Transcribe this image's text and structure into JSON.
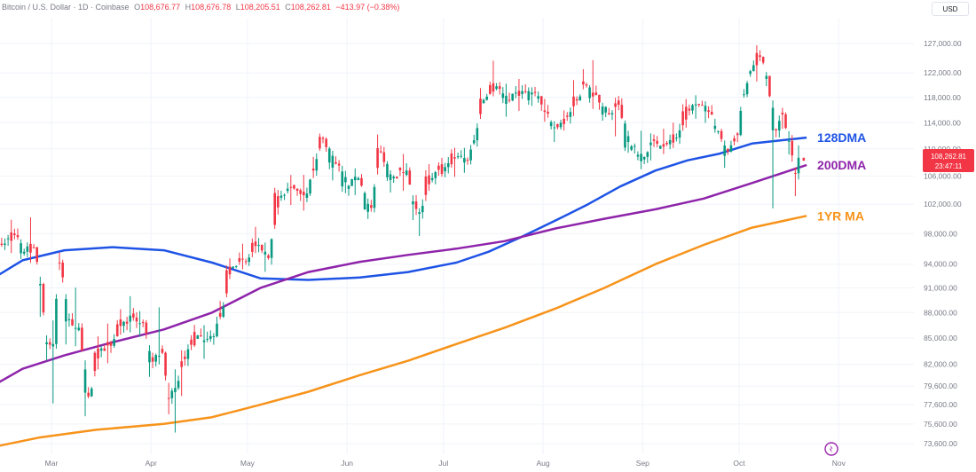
{
  "header": {
    "symbol": "Bitcoin / U.S. Dollar · 1D · Coinbase",
    "o_label": "O",
    "o_value": "108,676.77",
    "h_label": "H",
    "h_value": "108,676.78",
    "l_label": "L",
    "l_value": "108,205.51",
    "c_label": "C",
    "c_value": "108,262.81",
    "change": "−413.97 (−0.38%)"
  },
  "currency_button": "USD",
  "price_tag": {
    "price": "108,262.81",
    "countdown": "23:47:11",
    "color": "#f23645"
  },
  "colors": {
    "up": "#089981",
    "down": "#f23645",
    "ma128": "#1e53e5",
    "ma200": "#8e24aa",
    "ma1yr": "#f7931a",
    "grid": "#f0f3fa",
    "text": "#787b86"
  },
  "chart_data": {
    "type": "line",
    "chart_kind": "candlestick",
    "x_ticks": [
      "Mar",
      "Apr",
      "May",
      "Jun",
      "Jul",
      "Aug",
      "Sep",
      "Oct",
      "Nov"
    ],
    "y_ticks": [
      "127,000.00",
      "122,000.00",
      "118,000.00",
      "114,000.00",
      "110,000.00",
      "106,000.00",
      "102,000.00",
      "98,000.00",
      "94,000.00",
      "91,000.00",
      "88,000.00",
      "85,000.00",
      "82,000.00",
      "79,600.00",
      "77,600.00",
      "75,600.00",
      "73,600.00"
    ],
    "y_scale": "log",
    "candles_approx": [
      [
        "2025-02-10",
        97500,
        98500,
        95500,
        96500
      ],
      [
        "2025-02-14",
        96500,
        99000,
        95800,
        97800
      ],
      [
        "2025-02-18",
        97800,
        98000,
        95000,
        95600
      ],
      [
        "2025-02-21",
        95600,
        99500,
        94800,
        96200
      ],
      [
        "2025-02-24",
        96200,
        96500,
        88500,
        91500
      ],
      [
        "2025-02-26",
        91500,
        92000,
        83000,
        84500
      ],
      [
        "2025-02-28",
        84500,
        86500,
        78400,
        84300
      ],
      [
        "2025-03-02",
        84300,
        95000,
        84000,
        94200
      ],
      [
        "2025-03-04",
        94200,
        94500,
        84800,
        87200
      ],
      [
        "2025-03-07",
        87200,
        92000,
        85000,
        86200
      ],
      [
        "2025-03-10",
        86200,
        86500,
        76700,
        78500
      ],
      [
        "2025-03-13",
        78500,
        85000,
        78000,
        83800
      ],
      [
        "2025-03-17",
        83800,
        85500,
        81800,
        84100
      ],
      [
        "2025-03-20",
        84100,
        87500,
        83500,
        86900
      ],
      [
        "2025-03-24",
        86900,
        89000,
        86500,
        87400
      ],
      [
        "2025-03-27",
        87400,
        88500,
        86000,
        86800
      ],
      [
        "2025-03-30",
        86800,
        87200,
        81500,
        82300
      ],
      [
        "2025-04-02",
        82300,
        88500,
        82000,
        83300
      ],
      [
        "2025-04-05",
        83300,
        84500,
        77000,
        78300
      ],
      [
        "2025-04-07",
        78300,
        81200,
        74500,
        79400
      ],
      [
        "2025-04-09",
        79400,
        83500,
        76300,
        82600
      ],
      [
        "2025-04-12",
        82600,
        86000,
        82500,
        85300
      ],
      [
        "2025-04-16",
        85300,
        86500,
        83200,
        84900
      ],
      [
        "2025-04-19",
        84900,
        85500,
        84200,
        85200
      ],
      [
        "2025-04-21",
        85200,
        88500,
        85000,
        87500
      ],
      [
        "2025-04-23",
        87500,
        94700,
        87300,
        93700
      ],
      [
        "2025-04-27",
        93700,
        95500,
        93000,
        94300
      ],
      [
        "2025-05-01",
        94300,
        97500,
        93800,
        96500
      ],
      [
        "2025-05-05",
        96500,
        97000,
        93500,
        94800
      ],
      [
        "2025-05-08",
        94800,
        103500,
        94700,
        103200
      ],
      [
        "2025-05-12",
        103200,
        105800,
        101000,
        104200
      ],
      [
        "2025-05-16",
        104200,
        106500,
        102000,
        103500
      ],
      [
        "2025-05-20",
        103500,
        107500,
        103000,
        106800
      ],
      [
        "2025-05-22",
        106800,
        111900,
        106500,
        111500
      ],
      [
        "2025-05-25",
        111500,
        111800,
        106800,
        107800
      ],
      [
        "2025-05-29",
        107800,
        108500,
        103800,
        104600
      ],
      [
        "2025-06-02",
        104600,
        106000,
        103500,
        105700
      ],
      [
        "2025-06-05",
        105700,
        105800,
        101000,
        101500
      ],
      [
        "2025-06-09",
        101500,
        110500,
        101300,
        109500
      ],
      [
        "2025-06-12",
        109500,
        110000,
        104500,
        105900
      ],
      [
        "2025-06-16",
        105900,
        108500,
        104200,
        106800
      ],
      [
        "2025-06-20",
        106800,
        106900,
        101000,
        102400
      ],
      [
        "2025-06-22",
        102400,
        102500,
        98200,
        100900
      ],
      [
        "2025-06-24",
        100900,
        106300,
        100700,
        105700
      ],
      [
        "2025-06-28",
        105700,
        108000,
        105500,
        107300
      ],
      [
        "2025-07-02",
        107300,
        109500,
        105200,
        108900
      ],
      [
        "2025-07-06",
        108900,
        109800,
        107800,
        108300
      ],
      [
        "2025-07-09",
        108300,
        111900,
        108200,
        111300
      ],
      [
        "2025-07-11",
        111300,
        118900,
        111000,
        117600
      ],
      [
        "2025-07-14",
        117600,
        123200,
        117000,
        119800
      ],
      [
        "2025-07-18",
        119800,
        120900,
        116500,
        117500
      ],
      [
        "2025-07-22",
        117500,
        120300,
        116000,
        119000
      ],
      [
        "2025-07-26",
        119000,
        119800,
        117200,
        118200
      ],
      [
        "2025-07-31",
        118200,
        118900,
        114500,
        115700
      ],
      [
        "2025-08-02",
        115700,
        116000,
        112000,
        113300
      ],
      [
        "2025-08-06",
        113300,
        115800,
        112800,
        114900
      ],
      [
        "2025-08-09",
        114900,
        119200,
        114500,
        117500
      ],
      [
        "2025-08-12",
        117500,
        122000,
        117000,
        120100
      ],
      [
        "2025-08-14",
        120100,
        124500,
        117500,
        118400
      ],
      [
        "2025-08-18",
        118400,
        118500,
        114700,
        115300
      ],
      [
        "2025-08-22",
        115300,
        117500,
        111800,
        116800
      ],
      [
        "2025-08-25",
        116800,
        117000,
        109500,
        110400
      ],
      [
        "2025-08-29",
        110400,
        113000,
        108100,
        108800
      ],
      [
        "2025-09-02",
        108800,
        111800,
        107500,
        111200
      ],
      [
        "2025-09-05",
        111200,
        113300,
        110000,
        110700
      ],
      [
        "2025-09-09",
        110700,
        113200,
        110500,
        111700
      ],
      [
        "2025-09-12",
        111700,
        116000,
        111500,
        115900
      ],
      [
        "2025-09-16",
        115900,
        117400,
        114600,
        116800
      ],
      [
        "2025-09-19",
        116800,
        117500,
        115000,
        115700
      ],
      [
        "2025-09-22",
        115700,
        116000,
        112200,
        112700
      ],
      [
        "2025-09-25",
        112700,
        113000,
        108700,
        109600
      ],
      [
        "2025-09-28",
        109600,
        112500,
        109300,
        112100
      ],
      [
        "2025-10-01",
        112100,
        118500,
        112000,
        118500
      ],
      [
        "2025-10-03",
        118500,
        122500,
        118300,
        122300
      ],
      [
        "2025-10-05",
        122300,
        125900,
        120500,
        124700
      ],
      [
        "2025-10-08",
        124700,
        124900,
        120700,
        121500
      ],
      [
        "2025-10-10",
        121500,
        122500,
        102000,
        112800
      ],
      [
        "2025-10-13",
        112800,
        115900,
        111000,
        115300
      ],
      [
        "2025-10-15",
        115300,
        115900,
        110000,
        111200
      ],
      [
        "2025-10-17",
        111200,
        112000,
        103500,
        106400
      ],
      [
        "2025-10-19",
        106400,
        109500,
        106200,
        108677
      ],
      [
        "2025-10-20",
        108677,
        108677,
        108206,
        108263
      ]
    ],
    "series": [
      {
        "name": "128DMA",
        "points": [
          [
            "2025-02-10",
            92000
          ],
          [
            "2025-02-20",
            94500
          ],
          [
            "2025-03-05",
            95800
          ],
          [
            "2025-03-20",
            96200
          ],
          [
            "2025-04-05",
            95800
          ],
          [
            "2025-04-20",
            94200
          ],
          [
            "2025-05-05",
            92200
          ],
          [
            "2025-05-20",
            92000
          ],
          [
            "2025-06-05",
            92300
          ],
          [
            "2025-06-20",
            93000
          ],
          [
            "2025-07-05",
            94200
          ],
          [
            "2025-07-15",
            95600
          ],
          [
            "2025-07-25",
            97500
          ],
          [
            "2025-08-05",
            99800
          ],
          [
            "2025-08-15",
            102000
          ],
          [
            "2025-08-25",
            104500
          ],
          [
            "2025-09-05",
            106800
          ],
          [
            "2025-09-15",
            108300
          ],
          [
            "2025-09-25",
            109300
          ],
          [
            "2025-10-05",
            110800
          ],
          [
            "2025-10-22",
            111700
          ]
        ]
      },
      {
        "name": "200DMA",
        "points": [
          [
            "2025-02-10",
            79500
          ],
          [
            "2025-02-20",
            81500
          ],
          [
            "2025-03-05",
            83000
          ],
          [
            "2025-03-20",
            84500
          ],
          [
            "2025-04-05",
            86000
          ],
          [
            "2025-04-20",
            88000
          ],
          [
            "2025-05-05",
            91000
          ],
          [
            "2025-05-20",
            93000
          ],
          [
            "2025-06-05",
            94300
          ],
          [
            "2025-06-20",
            95200
          ],
          [
            "2025-07-05",
            96000
          ],
          [
            "2025-07-20",
            97000
          ],
          [
            "2025-08-05",
            98700
          ],
          [
            "2025-08-20",
            100000
          ],
          [
            "2025-09-05",
            101300
          ],
          [
            "2025-09-20",
            102800
          ],
          [
            "2025-10-05",
            105000
          ],
          [
            "2025-10-22",
            107600
          ]
        ]
      },
      {
        "name": "1YR MA",
        "points": [
          [
            "2025-02-10",
            73200
          ],
          [
            "2025-02-25",
            74200
          ],
          [
            "2025-03-15",
            75000
          ],
          [
            "2025-04-05",
            75600
          ],
          [
            "2025-04-20",
            76300
          ],
          [
            "2025-05-05",
            77600
          ],
          [
            "2025-05-20",
            79000
          ],
          [
            "2025-06-05",
            80800
          ],
          [
            "2025-06-20",
            82400
          ],
          [
            "2025-07-05",
            84300
          ],
          [
            "2025-07-20",
            86200
          ],
          [
            "2025-08-05",
            88500
          ],
          [
            "2025-08-20",
            91000
          ],
          [
            "2025-09-05",
            94000
          ],
          [
            "2025-09-20",
            96500
          ],
          [
            "2025-10-05",
            98800
          ],
          [
            "2025-10-22",
            100400
          ]
        ]
      }
    ],
    "ma_labels": [
      "128DMA",
      "200DMA",
      "1YR MA"
    ]
  }
}
